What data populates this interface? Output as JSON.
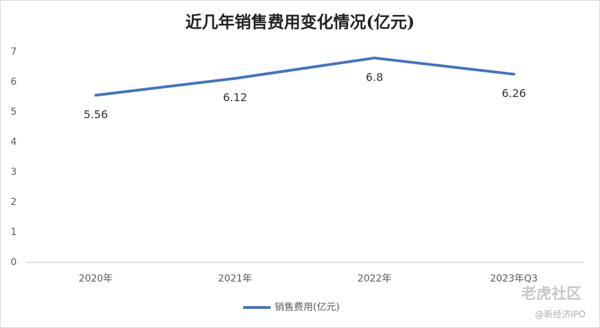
{
  "chart_data": {
    "type": "line",
    "title": "近几年销售费用变化情况(亿元)",
    "categories": [
      "2020年",
      "2021年",
      "2022年",
      "2023年Q3"
    ],
    "series": [
      {
        "name": "销售费用(亿元)",
        "color": "#4472c4",
        "values": [
          5.56,
          6.12,
          6.8,
          6.26
        ]
      }
    ],
    "ylim": [
      0,
      7
    ],
    "yticks": [
      0,
      1,
      2,
      3,
      4,
      5,
      6,
      7
    ],
    "grid": false,
    "legend": "bottom"
  },
  "watermark": {
    "brand": "老虎社区",
    "handle": "@新经济IPO"
  }
}
